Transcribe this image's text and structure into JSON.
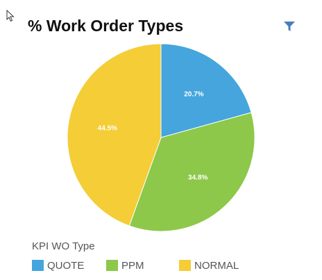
{
  "widget": {
    "title": "% Work Order Types",
    "filter_icon": "filter-icon",
    "cursor_icon": "mouse-pointer-icon"
  },
  "colors": {
    "QUOTE": "#45a5dc",
    "PPM": "#8dc84a",
    "NORMAL": "#f4cd37"
  },
  "chart_data": {
    "type": "pie",
    "categories": [
      "QUOTE",
      "PPM",
      "NORMAL"
    ],
    "values": [
      20.7,
      34.8,
      44.5
    ],
    "labels": [
      "20.7%",
      "34.8%",
      "44.5%"
    ],
    "legend_title": "KPI WO Type",
    "legend_position": "bottom-left"
  }
}
